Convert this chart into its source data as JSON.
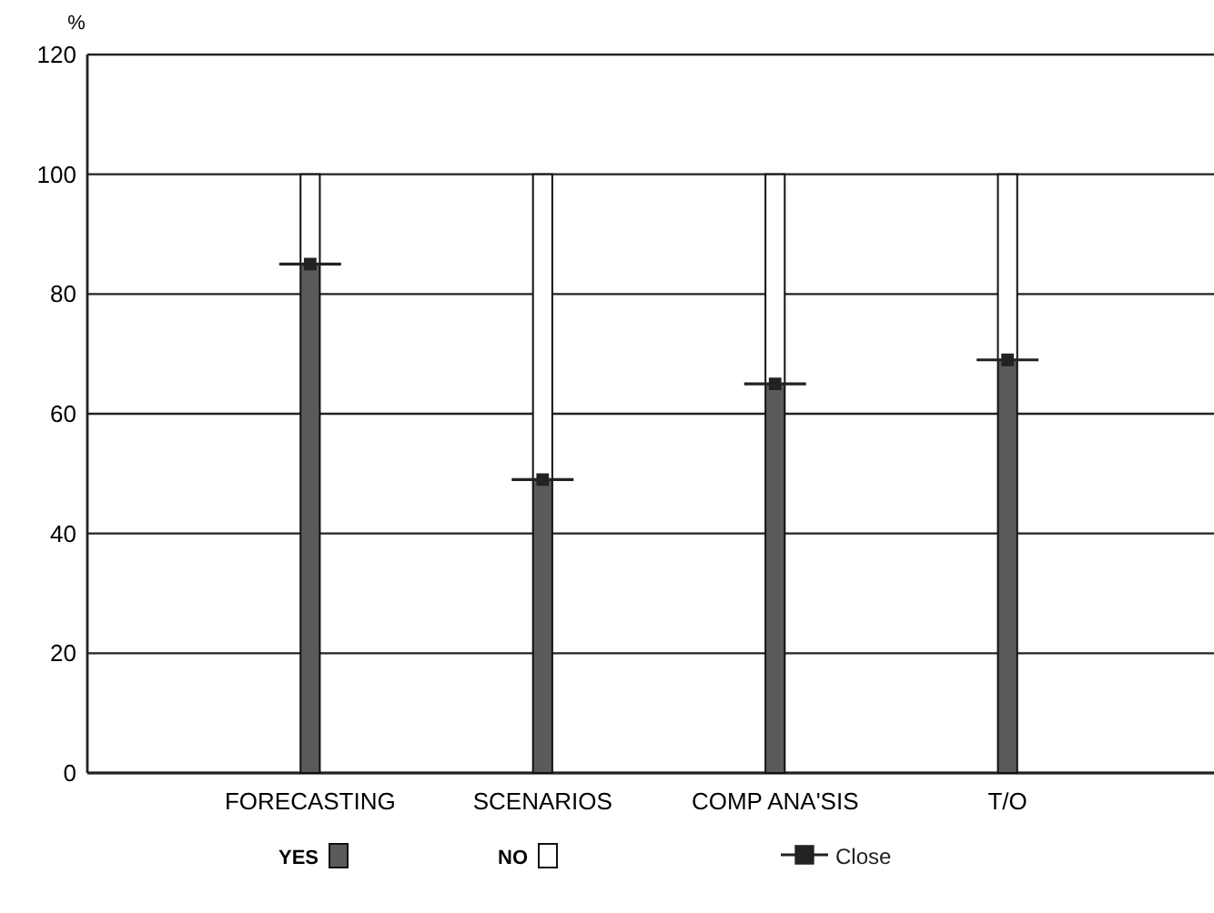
{
  "chart_data": {
    "type": "bar",
    "stacked": true,
    "ylabel": "%",
    "categories": [
      "FORECASTING",
      "SCENARIOS",
      "COMP ANA'SIS",
      "T/O"
    ],
    "series": [
      {
        "name": "YES",
        "color": "#5a5a5a",
        "values": [
          85,
          49,
          65,
          69
        ]
      },
      {
        "name": "NO",
        "color": "#ffffff",
        "values": [
          15,
          51,
          35,
          31
        ]
      },
      {
        "name": "Close",
        "type": "scatter",
        "marker": "square",
        "color": "#222222",
        "x": [
          "FORECASTING",
          "SCENARIOS",
          "COMP ANA'SIS",
          "T/O"
        ],
        "values": [
          85,
          49,
          65,
          69
        ]
      }
    ],
    "ylim": [
      0,
      120
    ],
    "yticks": [
      0,
      20,
      40,
      60,
      80,
      100,
      120
    ],
    "grid": "y",
    "legend": "bottom"
  }
}
